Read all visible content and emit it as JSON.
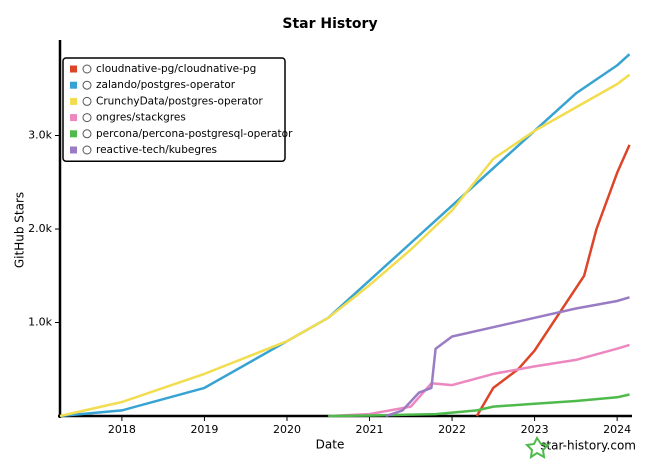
{
  "chart_data": {
    "type": "line",
    "title": "Star History",
    "x_label": "Date",
    "y_label": "GitHub Stars",
    "watermark": "star-history.com",
    "xlim": [
      2017.25,
      2024.18
    ],
    "xticks": [
      2018,
      2019,
      2020,
      2021,
      2022,
      2023,
      2024
    ],
    "ylim": [
      0,
      4000
    ],
    "yticks": [
      {
        "value": 1000,
        "label": "1.0k"
      },
      {
        "value": 2000,
        "label": "2.0k"
      },
      {
        "value": 3000,
        "label": "3.0k"
      }
    ],
    "legend": "top-left",
    "series": [
      {
        "name": "cloudnative-pg/cloudnative-pg",
        "color": "#dd4528",
        "x": [
          2022.3,
          2022.5,
          2022.8,
          2023.0,
          2023.3,
          2023.6,
          2023.75,
          2024.0,
          2024.15
        ],
        "values": [
          0,
          300,
          500,
          700,
          1100,
          1500,
          2000,
          2600,
          2900
        ]
      },
      {
        "name": "zalando/postgres-operator",
        "color": "#37a3d2",
        "x": [
          2017.25,
          2018,
          2019,
          2020,
          2020.5,
          2021,
          2021.5,
          2022,
          2022.5,
          2023,
          2023.5,
          2024,
          2024.15
        ],
        "values": [
          0,
          60,
          300,
          800,
          1050,
          1450,
          1850,
          2250,
          2650,
          3050,
          3450,
          3750,
          3870
        ]
      },
      {
        "name": "CrunchyData/postgres-operator",
        "color": "#f2dc4f",
        "x": [
          2017.25,
          2018,
          2019,
          2020,
          2020.5,
          2021,
          2021.5,
          2022,
          2022.5,
          2023,
          2023.5,
          2024,
          2024.15
        ],
        "values": [
          0,
          150,
          450,
          800,
          1050,
          1400,
          1780,
          2200,
          2750,
          3050,
          3300,
          3550,
          3650
        ]
      },
      {
        "name": "ongres/stackgres",
        "color": "#ec87c0",
        "x": [
          2020.5,
          2021,
          2021.5,
          2021.75,
          2022,
          2022.5,
          2023,
          2023.5,
          2024,
          2024.15
        ],
        "values": [
          0,
          20,
          100,
          350,
          330,
          450,
          530,
          600,
          720,
          760
        ]
      },
      {
        "name": "percona/percona-postgresql-operator",
        "color": "#4fba4c",
        "x": [
          2020.5,
          2021,
          2021.8,
          2022.3,
          2022.5,
          2023,
          2023.5,
          2024,
          2024.15
        ],
        "values": [
          0,
          5,
          20,
          60,
          100,
          130,
          160,
          200,
          230
        ]
      },
      {
        "name": "reactive-tech/kubegres",
        "color": "#9a7cc4",
        "x": [
          2021.2,
          2021.4,
          2021.6,
          2021.75,
          2021.8,
          2022,
          2022.5,
          2023,
          2023.5,
          2024,
          2024.15
        ],
        "values": [
          0,
          60,
          250,
          300,
          720,
          850,
          950,
          1050,
          1150,
          1230,
          1270
        ]
      }
    ]
  }
}
